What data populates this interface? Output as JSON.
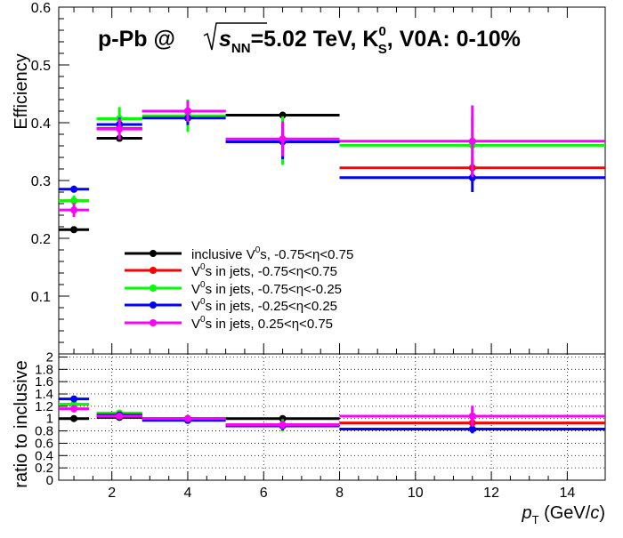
{
  "chart_data": [
    {
      "type": "scatter",
      "panel": "top",
      "title": {
        "prefix": "p-Pb @ ",
        "sqrt_var": "s",
        "sqrt_sub": "NN",
        "energy": "=5.02 TeV, K",
        "particle_sup": "0",
        "particle_sub": "S",
        "suffix": ", V0A: 0-10%"
      },
      "ylabel": "Efficiency",
      "xlim": [
        0.6,
        15
      ],
      "ylim": [
        0,
        0.6
      ],
      "y_ticks": [
        "0.1",
        "0.2",
        "0.3",
        "0.4",
        "0.5",
        "0.6"
      ],
      "grid": false,
      "legend_position": "bottom-left",
      "series": [
        {
          "name": {
            "pre": "inclusive V",
            "sup": "0",
            "post": "s, -0.75<η<0.75"
          },
          "color": "#000000",
          "points": [
            {
              "x": 1.0,
              "xlo": 0.6,
              "xhi": 1.4,
              "y": 0.215,
              "err": 0.004
            },
            {
              "x": 2.2,
              "xlo": 1.6,
              "xhi": 2.8,
              "y": 0.373,
              "err": 0.004
            },
            {
              "x": 4.0,
              "xlo": 2.8,
              "xhi": 5.0,
              "y": 0.42,
              "err": 0.004
            },
            {
              "x": 6.5,
              "xlo": 5.0,
              "xhi": 8.0,
              "y": 0.413,
              "err": 0.004
            }
          ]
        },
        {
          "name": {
            "pre": "V",
            "sup": "0",
            "post": "s in jets, -0.75<η<0.75"
          },
          "color": "#ff0000",
          "points": [
            {
              "x": 1.0,
              "xlo": 0.6,
              "xhi": 1.4,
              "y": 0.265,
              "err": 0.007
            },
            {
              "x": 2.2,
              "xlo": 1.6,
              "xhi": 2.8,
              "y": 0.39,
              "err": 0.007
            },
            {
              "x": 4.0,
              "xlo": 2.8,
              "xhi": 5.0,
              "y": 0.42,
              "err": 0.01
            },
            {
              "x": 6.5,
              "xlo": 5.0,
              "xhi": 8.0,
              "y": 0.37,
              "err": 0.02
            },
            {
              "x": 11.5,
              "xlo": 8.0,
              "xhi": 15.0,
              "y": 0.322,
              "err": 0.02
            }
          ]
        },
        {
          "name": {
            "pre": "V",
            "sup": "0",
            "post": "s in jets, -0.75<η<-0.25"
          },
          "color": "#00ff00",
          "points": [
            {
              "x": 1.0,
              "xlo": 0.6,
              "xhi": 1.4,
              "y": 0.265,
              "err": 0.009
            },
            {
              "x": 2.2,
              "xlo": 1.6,
              "xhi": 2.8,
              "y": 0.407,
              "err": 0.02
            },
            {
              "x": 4.0,
              "xlo": 2.8,
              "xhi": 5.0,
              "y": 0.412,
              "err": 0.028
            },
            {
              "x": 6.5,
              "xlo": 5.0,
              "xhi": 8.0,
              "y": 0.369,
              "err": 0.042
            },
            {
              "x": 11.5,
              "xlo": 8.0,
              "xhi": 15.0,
              "y": 0.361,
              "err": 0.05
            }
          ]
        },
        {
          "name": {
            "pre": "V",
            "sup": "0",
            "post": "s in jets, -0.25<η<0.25"
          },
          "color": "#0000ff",
          "points": [
            {
              "x": 1.0,
              "xlo": 0.6,
              "xhi": 1.4,
              "y": 0.285,
              "err": 0.006
            },
            {
              "x": 2.2,
              "xlo": 1.6,
              "xhi": 2.8,
              "y": 0.397,
              "err": 0.012
            },
            {
              "x": 4.0,
              "xlo": 2.8,
              "xhi": 5.0,
              "y": 0.408,
              "err": 0.012
            },
            {
              "x": 6.5,
              "xlo": 5.0,
              "xhi": 8.0,
              "y": 0.367,
              "err": 0.03
            },
            {
              "x": 11.5,
              "xlo": 8.0,
              "xhi": 15.0,
              "y": 0.305,
              "err": 0.025
            }
          ]
        },
        {
          "name": {
            "pre": "V",
            "sup": "0",
            "post": "s in jets, 0.25<η<0.75"
          },
          "color": "#ff00ff",
          "points": [
            {
              "x": 1.0,
              "xlo": 0.6,
              "xhi": 1.4,
              "y": 0.249,
              "err": 0.012
            },
            {
              "x": 2.2,
              "xlo": 1.6,
              "xhi": 2.8,
              "y": 0.389,
              "err": 0.018
            },
            {
              "x": 4.0,
              "xlo": 2.8,
              "xhi": 5.0,
              "y": 0.42,
              "err": 0.018
            },
            {
              "x": 6.5,
              "xlo": 5.0,
              "xhi": 8.0,
              "y": 0.372,
              "err": 0.03
            },
            {
              "x": 11.5,
              "xlo": 8.0,
              "xhi": 15.0,
              "y": 0.368,
              "err": 0.062
            }
          ]
        }
      ]
    },
    {
      "type": "scatter",
      "panel": "bottom",
      "ylabel": "ratio to inclusive",
      "xlabel": {
        "var": "p",
        "sub": "T",
        "unit_pre": " (GeV/",
        "unit_var": "c",
        "unit_post": ")"
      },
      "xlim": [
        0.6,
        15
      ],
      "ylim": [
        0,
        2.05
      ],
      "x_ticks": [
        "2",
        "4",
        "6",
        "8",
        "10",
        "12",
        "14"
      ],
      "y_ticks": [
        "0",
        "0.2",
        "0.4",
        "0.6",
        "0.8",
        "1",
        "1.2",
        "1.4",
        "1.6",
        "1.8",
        "2"
      ],
      "grid": true,
      "series": [
        {
          "color": "#000000",
          "points": [
            {
              "x": 1.0,
              "xlo": 0.6,
              "xhi": 1.4,
              "y": 1.0,
              "err": 0.02
            },
            {
              "x": 2.2,
              "xlo": 1.6,
              "xhi": 2.8,
              "y": 1.02,
              "err": 0.02
            },
            {
              "x": 4.0,
              "xlo": 2.8,
              "xhi": 5.0,
              "y": 1.0,
              "err": 0.02
            },
            {
              "x": 6.5,
              "xlo": 5.0,
              "xhi": 8.0,
              "y": 1.0,
              "err": 0.02
            }
          ]
        },
        {
          "color": "#ff0000",
          "points": [
            {
              "x": 1.0,
              "xlo": 0.6,
              "xhi": 1.4,
              "y": 1.23,
              "err": 0.04
            },
            {
              "x": 2.2,
              "xlo": 1.6,
              "xhi": 2.8,
              "y": 1.05,
              "err": 0.03
            },
            {
              "x": 4.0,
              "xlo": 2.8,
              "xhi": 5.0,
              "y": 1.0,
              "err": 0.03
            },
            {
              "x": 6.5,
              "xlo": 5.0,
              "xhi": 8.0,
              "y": 0.9,
              "err": 0.05
            },
            {
              "x": 11.5,
              "xlo": 8.0,
              "xhi": 15.0,
              "y": 0.93,
              "err": 0.06
            }
          ]
        },
        {
          "color": "#00ff00",
          "points": [
            {
              "x": 1.0,
              "xlo": 0.6,
              "xhi": 1.4,
              "y": 1.23,
              "err": 0.05
            },
            {
              "x": 2.2,
              "xlo": 1.6,
              "xhi": 2.8,
              "y": 1.09,
              "err": 0.05
            },
            {
              "x": 4.0,
              "xlo": 2.8,
              "xhi": 5.0,
              "y": 0.98,
              "err": 0.06
            },
            {
              "x": 6.5,
              "xlo": 5.0,
              "xhi": 8.0,
              "y": 0.89,
              "err": 0.1
            },
            {
              "x": 11.5,
              "xlo": 8.0,
              "xhi": 15.0,
              "y": 1.04,
              "err": 0.14
            }
          ]
        },
        {
          "color": "#0000ff",
          "points": [
            {
              "x": 1.0,
              "xlo": 0.6,
              "xhi": 1.4,
              "y": 1.32,
              "err": 0.03
            },
            {
              "x": 2.2,
              "xlo": 1.6,
              "xhi": 2.8,
              "y": 1.06,
              "err": 0.03
            },
            {
              "x": 4.0,
              "xlo": 2.8,
              "xhi": 5.0,
              "y": 0.97,
              "err": 0.03
            },
            {
              "x": 6.5,
              "xlo": 5.0,
              "xhi": 8.0,
              "y": 0.88,
              "err": 0.07
            },
            {
              "x": 11.5,
              "xlo": 8.0,
              "xhi": 15.0,
              "y": 0.83,
              "err": 0.07
            }
          ]
        },
        {
          "color": "#ff00ff",
          "points": [
            {
              "x": 1.0,
              "xlo": 0.6,
              "xhi": 1.4,
              "y": 1.16,
              "err": 0.06
            },
            {
              "x": 2.2,
              "xlo": 1.6,
              "xhi": 2.8,
              "y": 1.04,
              "err": 0.05
            },
            {
              "x": 4.0,
              "xlo": 2.8,
              "xhi": 5.0,
              "y": 1.0,
              "err": 0.04
            },
            {
              "x": 6.5,
              "xlo": 5.0,
              "xhi": 8.0,
              "y": 0.9,
              "err": 0.07
            },
            {
              "x": 11.5,
              "xlo": 8.0,
              "xhi": 15.0,
              "y": 1.04,
              "err": 0.17
            }
          ]
        }
      ]
    }
  ]
}
